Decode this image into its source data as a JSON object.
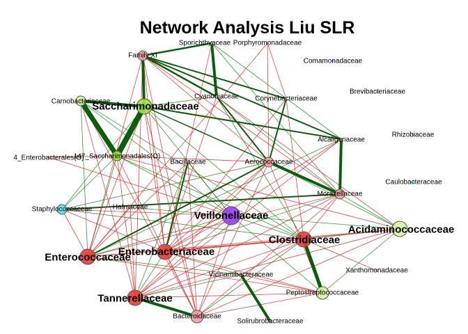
{
  "title": "Network Analysis Liu SLR",
  "colors": {
    "positive_edge": "#16861a",
    "negative_edge": "#e32020",
    "strong_edge": "#0b5e0b",
    "node_red": "#e8403c",
    "node_pink": "#f2a2a2",
    "node_green": "#9be53a",
    "node_lightgreen": "#d5f5a0",
    "node_purple": "#9b42f0",
    "node_cyan": "#61e0f0",
    "node_stroke": "#555555"
  },
  "nodes": [
    {
      "id": "sporichthyaceae",
      "label": "Sporichthyaceae",
      "color": "pink",
      "size": "xs",
      "emphasis": false
    },
    {
      "id": "porphyromonadaceae",
      "label": "Porphyromonadaceae",
      "color": "pink",
      "size": "xs",
      "emphasis": false
    },
    {
      "id": "family-xi",
      "label": "Family XI",
      "color": "pink",
      "size": "s",
      "emphasis": false
    },
    {
      "id": "comamonadaceae",
      "label": "Comamonadaceae",
      "color": "cyan",
      "size": "xs",
      "emphasis": false
    },
    {
      "id": "cyanobiaceae",
      "label": "Cyanobiaceae",
      "color": "pink",
      "size": "xs",
      "emphasis": false
    },
    {
      "id": "corynebacteriaceae",
      "label": "Corynebacteriaceae",
      "color": "pink",
      "size": "xs",
      "emphasis": false
    },
    {
      "id": "brevibacteriaceae",
      "label": "Brevibacteriaceae",
      "color": "pink",
      "size": "xs",
      "emphasis": false
    },
    {
      "id": "carnobacteriaceae",
      "label": "Carnobacteriaceae",
      "color": "lightgreen",
      "size": "s",
      "emphasis": false
    },
    {
      "id": "saccharimonadaceae",
      "label": "Saccharimonadaceae",
      "color": "green",
      "size": "l",
      "emphasis": true
    },
    {
      "id": "alcaligenaceae",
      "label": "Alcaligenaceae",
      "color": "pink",
      "size": "xs",
      "emphasis": false
    },
    {
      "id": "rhizobiaceae",
      "label": "Rhizobiaceae",
      "color": "pink",
      "size": "xs",
      "emphasis": false
    },
    {
      "id": "enterobacterales",
      "label": "4_Enterobacterales(O)",
      "color": "pink",
      "size": "xs",
      "emphasis": false
    },
    {
      "id": "saccharimonadales",
      "label": "147_Saccharimonadales(O)",
      "color": "green",
      "size": "s",
      "emphasis": false
    },
    {
      "id": "bacillaceae",
      "label": "Bacillaceae",
      "color": "pink",
      "size": "xs",
      "emphasis": false
    },
    {
      "id": "aerococcaceae",
      "label": "Aerococcaceae",
      "color": "pink",
      "size": "s",
      "emphasis": false
    },
    {
      "id": "caulobacteraceae",
      "label": "Caulobacteraceae",
      "color": "cyan",
      "size": "xs",
      "emphasis": false
    },
    {
      "id": "moraxellaceae",
      "label": "Moraxellaceae",
      "color": "pink",
      "size": "s",
      "emphasis": false
    },
    {
      "id": "staphylococcaceae",
      "label": "Staphylococcaceae",
      "color": "cyan",
      "size": "s",
      "emphasis": false
    },
    {
      "id": "hafniaceae",
      "label": "Hafniaceae",
      "color": "pink",
      "size": "xs",
      "emphasis": false
    },
    {
      "id": "veillonellaceae",
      "label": "Veillonellaceae",
      "color": "purple",
      "size": "xl",
      "emphasis": true
    },
    {
      "id": "acidaminococcaceae",
      "label": "Acidaminococcaceae",
      "color": "lightgreen",
      "size": "l",
      "emphasis": true
    },
    {
      "id": "clostridiaceae",
      "label": "Clostridiaceae",
      "color": "red",
      "size": "l",
      "emphasis": true
    },
    {
      "id": "enterobacteriaceae",
      "label": "Enterobacteriaceae",
      "color": "red",
      "size": "l",
      "emphasis": true
    },
    {
      "id": "enterococcaceae",
      "label": "Enterococcaceae",
      "color": "red",
      "size": "l",
      "emphasis": true
    },
    {
      "id": "xanthomonadaceae",
      "label": "Xanthomonadaceae",
      "color": "pink",
      "size": "xs",
      "emphasis": false
    },
    {
      "id": "vicinamibacteraceae",
      "label": "Vicinamibacteraceae",
      "color": "pink",
      "size": "xs",
      "emphasis": false
    },
    {
      "id": "peptostreptococcaceae",
      "label": "Peptostreptococcaceae",
      "color": "lightgreen",
      "size": "m",
      "emphasis": false
    },
    {
      "id": "tannerellaceae",
      "label": "Tannerellaceae",
      "color": "red",
      "size": "l",
      "emphasis": true
    },
    {
      "id": "bacteroidaceae",
      "label": "Bacteroidaceae",
      "color": "pink",
      "size": "m",
      "emphasis": false
    },
    {
      "id": "solirubrobacteraceae",
      "label": "Solirubrobacteraceae",
      "color": "pink",
      "size": "xs",
      "emphasis": false
    }
  ],
  "edges": [
    [
      "saccharimonadaceae",
      "saccharimonadales",
      "strong",
      8
    ],
    [
      "carnobacteriaceae",
      "saccharimonadales",
      "strong",
      7
    ],
    [
      "carnobacteriaceae",
      "saccharimonadaceae",
      "strong",
      4
    ],
    [
      "family-xi",
      "saccharimonadaceae",
      "strong",
      4
    ],
    [
      "sporichthyaceae",
      "cyanobiaceae",
      "strong",
      4
    ],
    [
      "family-xi",
      "sporichthyaceae",
      "strong",
      2.5
    ],
    [
      "family-xi",
      "cyanobiaceae",
      "strong",
      2.5
    ],
    [
      "family-xi",
      "corynebacteriaceae",
      "strong",
      2
    ],
    [
      "family-xi",
      "alcaligenaceae",
      "strong",
      2
    ],
    [
      "saccharimonadaceae",
      "alcaligenaceae",
      "strong",
      2
    ],
    [
      "alcaligenaceae",
      "moraxellaceae",
      "strong",
      4
    ],
    [
      "aerococcaceae",
      "moraxellaceae",
      "strong",
      4
    ],
    [
      "clostridiaceae",
      "peptostreptococcaceae",
      "strong",
      5
    ],
    [
      "tannerellaceae",
      "bacteroidaceae",
      "strong",
      4
    ],
    [
      "vicinamibacteraceae",
      "solirubrobacteraceae",
      "strong",
      4
    ],
    [
      "enterococcaceae",
      "aerococcaceae",
      "strong",
      2
    ],
    [
      "bacillaceae",
      "enterobacteriaceae",
      "strong",
      2
    ],
    [
      "staphylococcaceae",
      "moraxellaceae",
      "strong",
      2
    ],
    [
      "cyanobiaceae",
      "aerococcaceae",
      "strong",
      2
    ],
    [
      "corynebacteriaceae",
      "aerococcaceae",
      "strong",
      2
    ],
    [
      "saccharimonadaceae",
      "moraxellaceae",
      "strong",
      1.5
    ],
    [
      "enterococcaceae",
      "saccharimonadales",
      "pos",
      1
    ],
    [
      "staphylococcaceae",
      "saccharimonadales",
      "pos",
      1
    ],
    [
      "staphylococcaceae",
      "saccharimonadaceae",
      "pos",
      1
    ],
    [
      "saccharimonadaceae",
      "veillonellaceae",
      "pos",
      1
    ],
    [
      "saccharimonadaceae",
      "clostridiaceae",
      "pos",
      1
    ],
    [
      "saccharimonadales",
      "clostridiaceae",
      "pos",
      1
    ],
    [
      "saccharimonadales",
      "veillonellaceae",
      "pos",
      1
    ],
    [
      "carnobacteriaceae",
      "veillonellaceae",
      "pos",
      1
    ],
    [
      "carnobacteriaceae",
      "clostridiaceae",
      "pos",
      1
    ],
    [
      "veillonellaceae",
      "acidaminococcaceae",
      "pos",
      1
    ],
    [
      "veillonellaceae",
      "clostridiaceae",
      "pos",
      1
    ],
    [
      "veillonellaceae",
      "peptostreptococcaceae",
      "pos",
      1
    ],
    [
      "clostridiaceae",
      "acidaminococcaceae",
      "pos",
      1
    ],
    [
      "moraxellaceae",
      "acidaminococcaceae",
      "pos",
      1
    ],
    [
      "aerococcaceae",
      "acidaminococcaceae",
      "pos",
      1
    ],
    [
      "sporichthyaceae",
      "moraxellaceae",
      "pos",
      1
    ],
    [
      "sporichthyaceae",
      "alcaligenaceae",
      "pos",
      1
    ],
    [
      "cyanobiaceae",
      "moraxellaceae",
      "pos",
      1
    ],
    [
      "cyanobiaceae",
      "clostridiaceae",
      "pos",
      1
    ],
    [
      "alcaligenaceae",
      "enterococcaceae",
      "pos",
      1
    ],
    [
      "aerococcaceae",
      "staphylococcaceae",
      "pos",
      1
    ],
    [
      "enterobacteriaceae",
      "moraxellaceae",
      "pos",
      1
    ],
    [
      "enterobacteriaceae",
      "tannerellaceae",
      "pos",
      1
    ],
    [
      "enterobacteriaceae",
      "vicinamibacteraceae",
      "pos",
      1
    ],
    [
      "enterococcaceae",
      "veillonellaceae",
      "pos",
      1
    ],
    [
      "enterococcaceae",
      "vicinamibacteraceae",
      "pos",
      1
    ],
    [
      "tannerellaceae",
      "vicinamibacteraceae",
      "pos",
      1
    ],
    [
      "bacillaceae",
      "tannerellaceae",
      "pos",
      1
    ],
    [
      "bacillaceae",
      "veillonellaceae",
      "pos",
      1
    ],
    [
      "hafniaceae",
      "veillonellaceae",
      "pos",
      1
    ],
    [
      "staphylococcaceae",
      "clostridiaceae",
      "pos",
      1
    ],
    [
      "peptostreptococcaceae",
      "acidaminococcaceae",
      "pos",
      1
    ],
    [
      "bacteroidaceae",
      "clostridiaceae",
      "pos",
      1
    ],
    [
      "carnobacteriaceae",
      "enterococcaceae",
      "pos",
      1
    ],
    [
      "saccharimonadaceae",
      "cyanobiaceae",
      "pos",
      1
    ],
    [
      "family-xi",
      "moraxellaceae",
      "neg",
      1
    ],
    [
      "family-xi",
      "aerococcaceae",
      "neg",
      1
    ],
    [
      "family-xi",
      "enterococcaceae",
      "neg",
      1
    ],
    [
      "family-xi",
      "enterobacteriaceae",
      "neg",
      1
    ],
    [
      "family-xi",
      "tannerellaceae",
      "neg",
      1
    ],
    [
      "porphyromonadaceae",
      "aerococcaceae",
      "neg",
      1
    ],
    [
      "porphyromonadaceae",
      "enterococcaceae",
      "neg",
      1
    ],
    [
      "porphyromonadaceae",
      "corynebacteriaceae",
      "neg",
      1
    ],
    [
      "sporichthyaceae",
      "enterobacteriaceae",
      "neg",
      1
    ],
    [
      "carnobacteriaceae",
      "bacteroidaceae",
      "neg",
      1
    ],
    [
      "carnobacteriaceae",
      "tannerellaceae",
      "neg",
      1
    ],
    [
      "saccharimonadaceae",
      "enterobacteriaceae",
      "neg",
      1
    ],
    [
      "saccharimonadaceae",
      "bacteroidaceae",
      "neg",
      1
    ],
    [
      "saccharimonadales",
      "tannerellaceae",
      "neg",
      1
    ],
    [
      "saccharimonadales",
      "bacteroidaceae",
      "neg",
      1
    ],
    [
      "saccharimonadales",
      "acidaminococcaceae",
      "neg",
      1
    ],
    [
      "saccharimonadales",
      "aerococcaceae",
      "neg",
      1
    ],
    [
      "enterobacterales",
      "veillonellaceae",
      "neg",
      1
    ],
    [
      "enterobacterales",
      "saccharimonadales",
      "neg",
      1
    ],
    [
      "cyanobiaceae",
      "acidaminococcaceae",
      "neg",
      1
    ],
    [
      "cyanobiaceae",
      "enterobacteriaceae",
      "neg",
      1
    ],
    [
      "corynebacteriaceae",
      "enterobacteriaceae",
      "neg",
      1
    ],
    [
      "corynebacteriaceae",
      "clostridiaceae",
      "neg",
      1
    ],
    [
      "alcaligenaceae",
      "tannerellaceae",
      "neg",
      1
    ],
    [
      "alcaligenaceae",
      "enterobacteriaceae",
      "neg",
      1
    ],
    [
      "aerococcaceae",
      "tannerellaceae",
      "neg",
      1
    ],
    [
      "aerococcaceae",
      "bacteroidaceae",
      "neg",
      1
    ],
    [
      "aerococcaceae",
      "peptostreptococcaceae",
      "neg",
      1
    ],
    [
      "aerococcaceae",
      "enterobacteriaceae",
      "neg",
      1
    ],
    [
      "moraxellaceae",
      "enterococcaceae",
      "neg",
      1
    ],
    [
      "moraxellaceae",
      "clostridiaceae",
      "neg",
      1
    ],
    [
      "moraxellaceae",
      "tannerellaceae",
      "neg",
      1
    ],
    [
      "moraxellaceae",
      "bacteroidaceae",
      "neg",
      1
    ],
    [
      "bacillaceae",
      "enterococcaceae",
      "neg",
      1
    ],
    [
      "bacillaceae",
      "bacteroidaceae",
      "neg",
      1
    ],
    [
      "staphylococcaceae",
      "veillonellaceae",
      "neg",
      1
    ],
    [
      "staphylococcaceae",
      "enterobacteriaceae",
      "neg",
      1
    ],
    [
      "hafniaceae",
      "enterococcaceae",
      "neg",
      1
    ],
    [
      "hafniaceae",
      "tannerellaceae",
      "neg",
      1
    ],
    [
      "veillonellaceae",
      "enterobacteriaceae",
      "neg",
      1
    ],
    [
      "veillonellaceae",
      "tannerellaceae",
      "neg",
      1
    ],
    [
      "veillonellaceae",
      "bacteroidaceae",
      "neg",
      1
    ],
    [
      "clostridiaceae",
      "enterococcaceae",
      "neg",
      1
    ],
    [
      "clostridiaceae",
      "enterobacteriaceae",
      "neg",
      1
    ],
    [
      "clostridiaceae",
      "tannerellaceae",
      "neg",
      1
    ],
    [
      "clostridiaceae",
      "vicinamibacteraceae",
      "neg",
      1
    ],
    [
      "clostridiaceae",
      "xanthomonadaceae",
      "neg",
      1
    ],
    [
      "enterobacteriaceae",
      "acidaminococcaceae",
      "neg",
      1
    ],
    [
      "enterobacteriaceae",
      "bacteroidaceae",
      "neg",
      1
    ],
    [
      "enterobacteriaceae",
      "peptostreptococcaceae",
      "neg",
      1
    ],
    [
      "enterococcaceae",
      "peptostreptococcaceae",
      "neg",
      1
    ],
    [
      "enterococcaceae",
      "acidaminococcaceae",
      "neg",
      1
    ],
    [
      "tannerellaceae",
      "peptostreptococcaceae",
      "neg",
      1
    ],
    [
      "tannerellaceae",
      "acidaminococcaceae",
      "neg",
      1
    ],
    [
      "bacteroidaceae",
      "peptostreptococcaceae",
      "neg",
      1
    ],
    [
      "bacteroidaceae",
      "acidaminococcaceae",
      "neg",
      1
    ],
    [
      "peptostreptococcaceae",
      "vicinamibacteraceae",
      "neg",
      1
    ],
    [
      "enterococcaceae",
      "staphylococcaceae",
      "neg",
      1
    ],
    [
      "enterococcaceae",
      "saccharimonadaceae",
      "neg",
      1
    ],
    [
      "family-xi",
      "bacteroidaceae",
      "neg",
      1
    ]
  ]
}
